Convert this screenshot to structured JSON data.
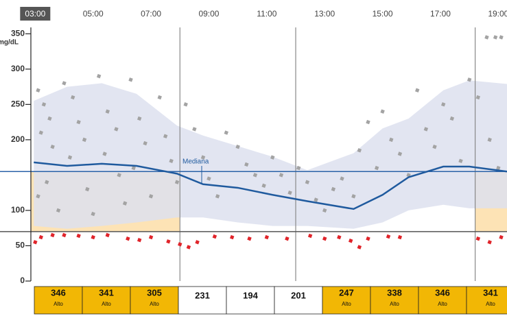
{
  "chart_data": {
    "type": "scatter",
    "y_label": "mg/dL",
    "xlim": [
      2.85,
      19.3
    ],
    "ylim": [
      0,
      359
    ],
    "xticks": [
      {
        "value": 3,
        "label": "03:00"
      },
      {
        "value": 5,
        "label": "05:00"
      },
      {
        "value": 7,
        "label": "07:00"
      },
      {
        "value": 9,
        "label": "09:00"
      },
      {
        "value": 11,
        "label": "11:00"
      },
      {
        "value": 13,
        "label": "13:00"
      },
      {
        "value": 15,
        "label": "15:00"
      },
      {
        "value": 17,
        "label": "17:00"
      },
      {
        "value": 19,
        "label": "19:00"
      }
    ],
    "selected_tick": 0,
    "yticks": [
      350,
      300,
      250,
      200,
      100,
      50,
      0
    ],
    "target_range": [
      70,
      155
    ],
    "target_color": "#2a62a8",
    "low_line_color": "#555555",
    "vlines": [
      8,
      12,
      18.2
    ],
    "shaded_ranges": [
      [
        2.85,
        8
      ],
      [
        18.2,
        19.3
      ]
    ],
    "shade_color": "#fde3b5",
    "band": {
      "color": "#dde1ee",
      "x": [
        2.95,
        4.1,
        5.3,
        6.5,
        7.9,
        8.8,
        10,
        11.2,
        12.4,
        14,
        15,
        15.9,
        17.1,
        18,
        19.3
      ],
      "upper": [
        255,
        275,
        280,
        265,
        220,
        206,
        191,
        176,
        157,
        181,
        216,
        230,
        270,
        284,
        279
      ],
      "lower": [
        78,
        74,
        78,
        83,
        90,
        90,
        83,
        78,
        78,
        74,
        83,
        100,
        108,
        103,
        103
      ]
    },
    "median": {
      "name": "Mediana",
      "color": "#1f5a9e",
      "x": [
        2.95,
        4.1,
        5.3,
        6.5,
        7.9,
        8.8,
        10,
        11.2,
        12.4,
        14,
        15,
        15.9,
        17.1,
        18,
        19.3
      ],
      "values": [
        168,
        163,
        166,
        163,
        152,
        137,
        132,
        122,
        113,
        102,
        122,
        147,
        162,
        162,
        155
      ]
    },
    "series": [
      {
        "color": "#a3a3a3",
        "x": [
          3.1,
          3.3,
          3.5,
          3.2,
          3.6,
          3.4,
          3.1,
          3.8,
          4.0,
          4.3,
          4.5,
          4.7,
          4.2,
          4.8,
          5.0,
          5.2,
          5.5,
          5.8,
          5.4,
          5.9,
          6.1,
          6.3,
          6.6,
          6.8,
          6.4,
          7.0,
          7.3,
          7.5,
          7.7,
          7.9,
          8.2,
          8.5,
          8.8,
          9.0,
          9.3,
          9.6,
          10.0,
          10.3,
          10.6,
          10.9,
          11.2,
          11.5,
          11.8,
          12.1,
          12.4,
          12.7,
          13.0,
          13.3,
          13.6,
          14.0,
          14.2,
          14.5,
          14.8,
          15.0,
          15.3,
          15.6,
          15.9,
          16.2,
          16.5,
          16.8,
          17.1,
          17.4,
          17.7,
          18.0,
          18.3,
          18.6,
          18.9,
          19.1,
          18.7,
          19.0
        ],
        "values": [
          270,
          250,
          230,
          210,
          190,
          140,
          120,
          100,
          280,
          260,
          225,
          200,
          175,
          130,
          95,
          290,
          240,
          215,
          180,
          150,
          110,
          285,
          230,
          195,
          160,
          120,
          260,
          205,
          170,
          140,
          250,
          215,
          175,
          145,
          120,
          210,
          190,
          165,
          150,
          135,
          175,
          150,
          125,
          160,
          140,
          115,
          100,
          130,
          145,
          120,
          185,
          225,
          160,
          240,
          200,
          180,
          150,
          270,
          215,
          190,
          250,
          230,
          170,
          285,
          260,
          345,
          345,
          345,
          200,
          160
        ]
      },
      {
        "color": "#e0242a",
        "x": [
          3.0,
          3.2,
          3.6,
          4.0,
          4.5,
          5.0,
          5.5,
          6.2,
          6.6,
          7.0,
          7.6,
          8.0,
          8.3,
          8.6,
          9.2,
          9.8,
          10.4,
          11.0,
          11.7,
          12.5,
          13.0,
          13.5,
          13.9,
          14.2,
          14.5,
          15.2,
          15.6,
          18.3,
          18.7,
          19.1
        ],
        "values": [
          55,
          62,
          65,
          65,
          64,
          62,
          65,
          60,
          58,
          62,
          56,
          52,
          48,
          55,
          63,
          62,
          60,
          62,
          60,
          64,
          60,
          62,
          57,
          48,
          60,
          63,
          62,
          60,
          55,
          62
        ]
      }
    ],
    "summary_color": "#f2b705",
    "summary": [
      {
        "value": 346,
        "label": "Alto"
      },
      {
        "value": 341,
        "label": "Alto"
      },
      {
        "value": 305,
        "label": "Alto"
      },
      {
        "value": 231,
        "label": null
      },
      {
        "value": 194,
        "label": null
      },
      {
        "value": 201,
        "label": null
      },
      {
        "value": 247,
        "label": "Alto"
      },
      {
        "value": 338,
        "label": "Alto"
      },
      {
        "value": 346,
        "label": "Alto"
      },
      {
        "value": 341,
        "label": "Alto"
      }
    ]
  }
}
